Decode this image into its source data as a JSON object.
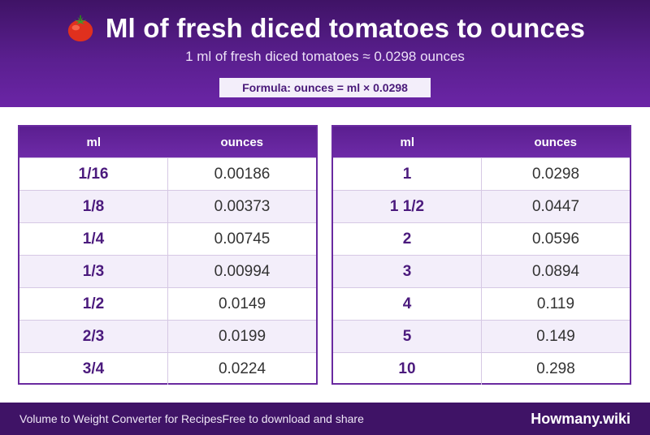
{
  "header": {
    "title": "Ml of fresh diced tomatoes to ounces",
    "subtitle": "1 ml of fresh diced tomatoes ≈ 0.0298 ounces",
    "formula": "Formula: ounces = ml × 0.0298",
    "icon": "tomato-icon"
  },
  "tables": {
    "left": {
      "headers": {
        "ml": "ml",
        "oz": "ounces"
      },
      "rows": [
        {
          "ml": "1/16",
          "oz": "0.00186"
        },
        {
          "ml": "1/8",
          "oz": "0.00373"
        },
        {
          "ml": "1/4",
          "oz": "0.00745"
        },
        {
          "ml": "1/3",
          "oz": "0.00994"
        },
        {
          "ml": "1/2",
          "oz": "0.0149"
        },
        {
          "ml": "2/3",
          "oz": "0.0199"
        },
        {
          "ml": "3/4",
          "oz": "0.0224"
        }
      ]
    },
    "right": {
      "headers": {
        "ml": "ml",
        "oz": "ounces"
      },
      "rows": [
        {
          "ml": "1",
          "oz": "0.0298"
        },
        {
          "ml": "1 1/2",
          "oz": "0.0447"
        },
        {
          "ml": "2",
          "oz": "0.0596"
        },
        {
          "ml": "3",
          "oz": "0.0894"
        },
        {
          "ml": "4",
          "oz": "0.119"
        },
        {
          "ml": "5",
          "oz": "0.149"
        },
        {
          "ml": "10",
          "oz": "0.298"
        }
      ]
    }
  },
  "footer": {
    "left_text": "Volume to Weight Converter for RecipesFree to download and share",
    "brand": "Howmany.wiki"
  },
  "colors": {
    "header_bg": "#4a1a78",
    "accent": "#6a2aa0",
    "row_alt": "#f3eefa",
    "ml_text": "#4b1a7d"
  }
}
